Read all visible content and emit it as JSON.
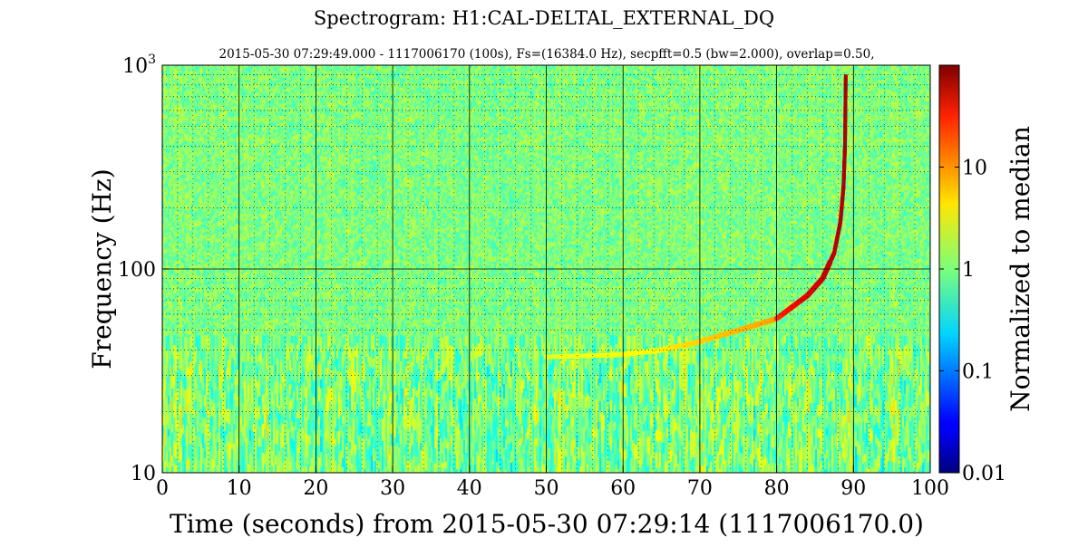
{
  "chart_data": {
    "type": "heatmap",
    "title": "Spectrogram:  H1:CAL-DELTAL_EXTERNAL_DQ",
    "subtitle": "2015-05-30  07:29:49.000 - 1117006170  (100s),  Fs=(16384.0  Hz),  secpfft=0.5  (bw=2.000),  overlap=0.50,",
    "xlabel": "Time (seconds) from 2015-05-30 07:29:14 (1117006170.0)",
    "ylabel": "Frequency (Hz)",
    "xlim": [
      0,
      100
    ],
    "ylim": [
      10,
      1000
    ],
    "y_scale": "log",
    "x_ticks": [
      {
        "value": 0,
        "label": "0"
      },
      {
        "value": 10,
        "label": "10"
      },
      {
        "value": 20,
        "label": "20"
      },
      {
        "value": 30,
        "label": "30"
      },
      {
        "value": 40,
        "label": "40"
      },
      {
        "value": 50,
        "label": "50"
      },
      {
        "value": 60,
        "label": "60"
      },
      {
        "value": 70,
        "label": "70"
      },
      {
        "value": 80,
        "label": "80"
      },
      {
        "value": 90,
        "label": "90"
      },
      {
        "value": 100,
        "label": "100"
      }
    ],
    "y_ticks": [
      {
        "value": 10,
        "label": "10",
        "sup": ""
      },
      {
        "value": 100,
        "label": "100",
        "sup": ""
      },
      {
        "value": 1000,
        "label": "10",
        "sup": "3"
      }
    ],
    "grid": true,
    "colorbar": {
      "label": "Normalized to median",
      "scale": "log",
      "range": [
        0.01,
        100
      ],
      "colormap": "jet",
      "ticks": [
        {
          "value": 0.01,
          "label": "0.01"
        },
        {
          "value": 0.1,
          "label": "0.1"
        },
        {
          "value": 1,
          "label": "1"
        },
        {
          "value": 10,
          "label": "10"
        }
      ]
    },
    "background_level": 1,
    "chirp_track": {
      "name": "",
      "points": [
        {
          "t": 50,
          "f": 37
        },
        {
          "t": 60,
          "f": 38
        },
        {
          "t": 65,
          "f": 40
        },
        {
          "t": 70,
          "f": 44
        },
        {
          "t": 75,
          "f": 50
        },
        {
          "t": 80,
          "f": 57
        },
        {
          "t": 82,
          "f": 65
        },
        {
          "t": 84,
          "f": 74
        },
        {
          "t": 86,
          "f": 90
        },
        {
          "t": 87.5,
          "f": 120
        },
        {
          "t": 88.3,
          "f": 170
        },
        {
          "t": 88.7,
          "f": 250
        },
        {
          "t": 88.9,
          "f": 400
        },
        {
          "t": 89.0,
          "f": 900
        }
      ]
    }
  }
}
